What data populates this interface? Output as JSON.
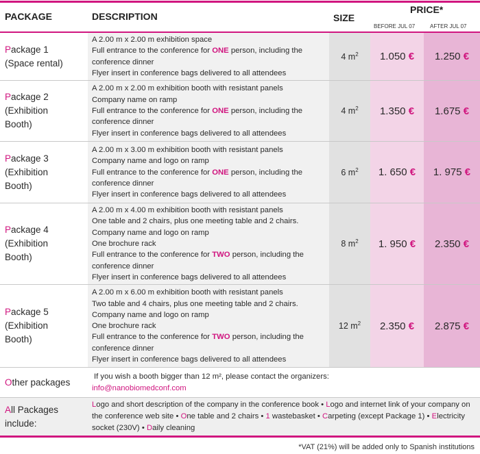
{
  "header": {
    "package": "PACKAGE",
    "description": "DESCRIPTION",
    "size": "SIZE",
    "price": "PRICE*",
    "before": "BEFORE JUL 07",
    "after": "AFTER JUL 07"
  },
  "packages": [
    {
      "name": "Package 1",
      "subtitle": "(Space rental)",
      "size": "4 m",
      "before": "1.050",
      "after": "1.250",
      "currency": "€",
      "lines": [
        [
          {
            "t": "A 2.00 m x 2.00 m exhibition space"
          }
        ],
        [
          {
            "t": "Full entrance to the conference for "
          },
          {
            "t": "ONE",
            "hi": true
          },
          {
            "t": " person, including the"
          }
        ],
        [
          {
            "t": "conference dinner"
          }
        ],
        [
          {
            "t": "Flyer insert in conference bags delivered to all attendees"
          }
        ]
      ]
    },
    {
      "name": "Package 2",
      "subtitle": "(Exhibition Booth)",
      "size": "4 m",
      "before": "1.350",
      "after": "1.675",
      "currency": "€",
      "lines": [
        [
          {
            "t": "A 2.00 m x 2.00 m exhibition booth with resistant panels"
          }
        ],
        [
          {
            "t": "Company name on ramp"
          }
        ],
        [
          {
            "t": "Full entrance to the conference for "
          },
          {
            "t": "ONE",
            "hi": true
          },
          {
            "t": " person, including the"
          }
        ],
        [
          {
            "t": "conference dinner"
          }
        ],
        [
          {
            "t": "Flyer insert in conference bags delivered to all attendees"
          }
        ]
      ]
    },
    {
      "name": "Package 3",
      "subtitle": "(Exhibition Booth)",
      "size": "6 m",
      "before": "1. 650",
      "after": "1. 975",
      "currency": "€",
      "lines": [
        [
          {
            "t": "A 2.00 m x 3.00 m exhibition booth with resistant panels"
          }
        ],
        [
          {
            "t": "Company name and logo on ramp"
          }
        ],
        [
          {
            "t": "Full entrance to the conference for "
          },
          {
            "t": "ONE",
            "hi": true
          },
          {
            "t": " person, including the"
          }
        ],
        [
          {
            "t": "conference dinner"
          }
        ],
        [
          {
            "t": "Flyer insert in conference bags delivered to all attendees"
          }
        ]
      ]
    },
    {
      "name": "Package 4",
      "subtitle": "(Exhibition Booth)",
      "size": "8 m",
      "before": "1. 950",
      "after": "2.350",
      "currency": "€",
      "lines": [
        [
          {
            "t": "A 2.00 m x 4.00 m exhibition booth with resistant panels"
          }
        ],
        [
          {
            "t": "One table and 2 chairs, plus one meeting table and 2 chairs."
          }
        ],
        [
          {
            "t": "Company name and logo on ramp"
          }
        ],
        [
          {
            "t": "One brochure rack"
          }
        ],
        [
          {
            "t": "Full entrance to the conference for "
          },
          {
            "t": "TWO",
            "hi": true
          },
          {
            "t": " person, including the"
          }
        ],
        [
          {
            "t": "conference dinner"
          }
        ],
        [
          {
            "t": "Flyer insert in conference bags delivered to all attendees"
          }
        ]
      ]
    },
    {
      "name": "Package 5",
      "subtitle": "(Exhibition Booth)",
      "size": "12 m",
      "before": "2.350",
      "after": "2.875",
      "currency": "€",
      "lines": [
        [
          {
            "t": "A 2.00 m x 6.00 m exhibition booth with resistant panels"
          }
        ],
        [
          {
            "t": "Two table and 4 chairs, plus one meeting table and 2 chairs."
          }
        ],
        [
          {
            "t": "Company name and logo on ramp"
          }
        ],
        [
          {
            "t": "One brochure rack"
          }
        ],
        [
          {
            "t": "Full entrance to the conference for "
          },
          {
            "t": "TWO",
            "hi": true
          },
          {
            "t": " person, including the"
          }
        ],
        [
          {
            "t": "conference dinner"
          }
        ],
        [
          {
            "t": "Flyer insert in conference bags delivered to all attendees"
          }
        ]
      ]
    }
  ],
  "other": {
    "label": "Other packages",
    "text": "If you wish a booth bigger than 12 m², please contact the organizers:",
    "email": "info@nanobiomedconf.com"
  },
  "all": {
    "label": "All Packages include:",
    "items": [
      "Logo and short description of the company in the conference book",
      "Logo and internet link of your company on the conference web site",
      "One table and 2 chairs",
      "1 wastebasket",
      "Carpeting (except Package 1)",
      "Electricity socket (230V)",
      "Daily cleaning"
    ],
    "separator": " • "
  },
  "footnote": "*VAT (21%) will be added only to Spanish institutions",
  "colors": {
    "accent": "#d0157f",
    "desc_bg": "#f1f1f1",
    "size_bg": "#e1e1e1",
    "before_bg": "#f3d4e7",
    "after_bg": "#e8b5d6"
  }
}
